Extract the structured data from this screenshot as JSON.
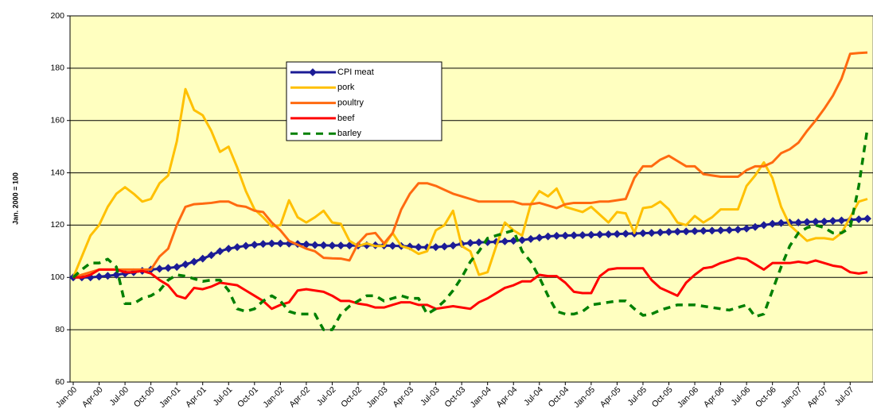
{
  "chart_data": {
    "type": "line",
    "y_label": "Jan. 2000 = 100",
    "categories": [
      "Jan-00",
      null,
      null,
      "Apr-00",
      null,
      null,
      "Jul-00",
      null,
      null,
      "Oct-00",
      null,
      null,
      "Jan-01",
      null,
      null,
      "Apr-01",
      null,
      null,
      "Jul-01",
      null,
      null,
      "Oct-01",
      null,
      null,
      "Jan-02",
      null,
      null,
      "Apr-02",
      null,
      null,
      "Jul-02",
      null,
      null,
      "Oct-02",
      null,
      null,
      "Jan-03",
      null,
      null,
      "Apr-03",
      null,
      null,
      "Jul-03",
      null,
      null,
      "Oct-03",
      null,
      null,
      "Jan-04",
      null,
      null,
      "Apr-04",
      null,
      null,
      "Jul-04",
      null,
      null,
      "Oct-04",
      null,
      null,
      "Jan-05",
      null,
      null,
      "Apr-05",
      null,
      null,
      "Jul-05",
      null,
      null,
      "Oct-05",
      null,
      null,
      "Jan-06",
      null,
      null,
      "Apr-06",
      null,
      null,
      "Jul-06",
      null,
      null,
      "Oct-06",
      null,
      null,
      "Jan-07",
      null,
      null,
      "Apr-07",
      null,
      null,
      "Jul-07",
      null,
      null
    ],
    "ylim": [
      60,
      200
    ],
    "yticks": [
      60,
      80,
      100,
      120,
      140,
      160,
      180,
      200
    ],
    "grid": true,
    "background": "#ffffc0",
    "legend": "top-center",
    "series": [
      {
        "name": "CPI meat",
        "color": "#1c1c96",
        "marker": "diamond",
        "values": [
          100,
          100,
          100,
          100.3,
          100.6,
          101,
          101.5,
          102,
          102.5,
          103,
          103.3,
          103.6,
          104,
          105,
          106,
          107.2,
          108.5,
          110,
          111,
          111.6,
          112.1,
          112.5,
          112.8,
          113,
          113,
          112.9,
          112.8,
          112.6,
          112.4,
          112.3,
          112.2,
          112.2,
          112.2,
          112.2,
          112.3,
          112.3,
          112.2,
          112.1,
          112,
          111.8,
          111.6,
          111.5,
          111.6,
          111.8,
          112.2,
          112.8,
          113.2,
          113.4,
          113.5,
          113.6,
          113.8,
          114,
          114.3,
          114.7,
          115.2,
          115.7,
          115.9,
          116,
          116.1,
          116.2,
          116.3,
          116.4,
          116.5,
          116.6,
          116.7,
          116.8,
          116.9,
          117,
          117.2,
          117.4,
          117.5,
          117.6,
          117.7,
          117.8,
          117.9,
          118,
          118.1,
          118.3,
          118.7,
          119.3,
          120,
          120.5,
          120.8,
          121,
          121,
          121.2,
          121.3,
          121.4,
          121.6,
          121.8,
          122,
          122.2,
          122.5
        ]
      },
      {
        "name": "pork",
        "color": "#ffc000",
        "values": [
          100,
          108,
          116,
          120,
          127,
          132,
          134.5,
          132,
          129,
          130,
          136,
          139,
          152,
          172,
          164,
          162,
          156,
          148,
          150,
          142,
          133,
          126,
          123,
          119.5,
          120,
          129.5,
          123,
          121,
          123,
          125.5,
          121,
          120.5,
          114,
          112,
          113,
          112,
          112,
          117,
          112,
          111,
          109,
          110,
          118,
          120,
          125.5,
          112,
          110,
          101,
          102,
          112,
          121,
          118,
          116,
          128,
          133,
          131,
          134,
          127,
          126,
          125,
          127,
          124,
          121,
          125,
          124.5,
          117,
          126.5,
          127,
          129,
          126,
          121,
          120,
          123.5,
          121,
          123,
          126,
          126,
          126,
          135,
          139,
          144,
          138,
          127,
          120,
          117,
          114,
          115,
          115,
          114.5,
          117,
          123,
          129,
          130
        ]
      },
      {
        "name": "poultry",
        "color": "#ff6a10",
        "values": [
          100,
          101,
          102,
          103,
          103,
          103,
          103,
          103,
          103,
          103,
          108,
          111,
          120,
          127,
          128,
          128.2,
          128.5,
          129,
          129,
          127.5,
          127,
          125.5,
          125,
          121,
          118,
          114,
          112.5,
          111,
          110,
          107.5,
          107.3,
          107.2,
          106.5,
          113,
          116.5,
          117,
          113,
          117,
          126,
          132,
          136,
          136,
          135,
          133.5,
          132,
          131,
          130,
          129,
          129,
          129,
          129,
          129,
          128,
          128,
          128.5,
          127.5,
          126.5,
          128,
          128.5,
          128.5,
          128.5,
          129,
          129,
          129.5,
          130,
          138,
          142.5,
          142.5,
          145,
          146.5,
          144.5,
          142.5,
          142.5,
          139.5,
          139,
          138.5,
          138.5,
          138.5,
          141,
          142.5,
          142.5,
          144,
          147.5,
          149,
          151.5,
          156,
          160,
          164.5,
          169.5,
          176,
          185.5,
          185.8,
          186
        ]
      },
      {
        "name": "beef",
        "color": "#ff0000",
        "values": [
          100,
          100,
          101,
          103,
          103,
          103,
          102,
          102,
          102.5,
          101.5,
          99,
          97,
          93,
          92,
          96,
          95.5,
          96.5,
          98,
          97.5,
          97,
          95,
          93,
          91,
          88,
          89.5,
          90.5,
          95,
          95.5,
          95,
          94.5,
          93,
          91,
          91,
          90,
          89.5,
          88.5,
          88.5,
          89.5,
          90.5,
          90.5,
          89.5,
          89.5,
          88,
          88.5,
          89,
          88.5,
          88,
          90.5,
          92,
          94,
          96,
          97,
          98.5,
          98.5,
          101,
          100.5,
          100.5,
          98,
          94.5,
          94,
          94,
          100.5,
          103,
          103.5,
          103.5,
          103.5,
          103.5,
          99,
          96,
          94.5,
          93,
          98,
          101,
          103.5,
          104,
          105.5,
          106.5,
          107.5,
          107,
          105,
          103,
          105.5,
          105.5,
          105.5,
          106,
          105.5,
          106.5,
          105.5,
          104.5,
          104,
          102,
          101.5,
          102
        ]
      },
      {
        "name": "barley",
        "color": "#008000",
        "dash": true,
        "values": [
          100,
          103,
          105.5,
          105.5,
          107,
          104,
          90,
          90,
          92,
          93,
          95,
          99,
          101,
          100.5,
          99.5,
          98.5,
          99,
          99,
          95,
          88,
          87,
          88,
          91,
          93,
          91,
          87,
          86,
          86,
          86,
          80,
          80,
          86,
          89,
          91,
          93,
          93,
          91,
          92,
          93,
          92,
          92,
          86,
          88,
          91,
          95,
          100,
          106,
          110,
          115,
          116,
          117,
          118,
          110,
          106,
          100,
          93,
          87,
          86,
          86,
          87,
          89.5,
          90,
          90.5,
          91,
          91,
          88,
          85.5,
          86,
          87.5,
          88.5,
          89.5,
          89.5,
          89.5,
          89,
          88.5,
          88,
          87.5,
          88.5,
          89.5,
          85,
          86,
          95,
          104,
          112,
          117,
          119,
          120,
          119,
          117,
          117,
          119,
          135,
          157
        ]
      }
    ]
  }
}
